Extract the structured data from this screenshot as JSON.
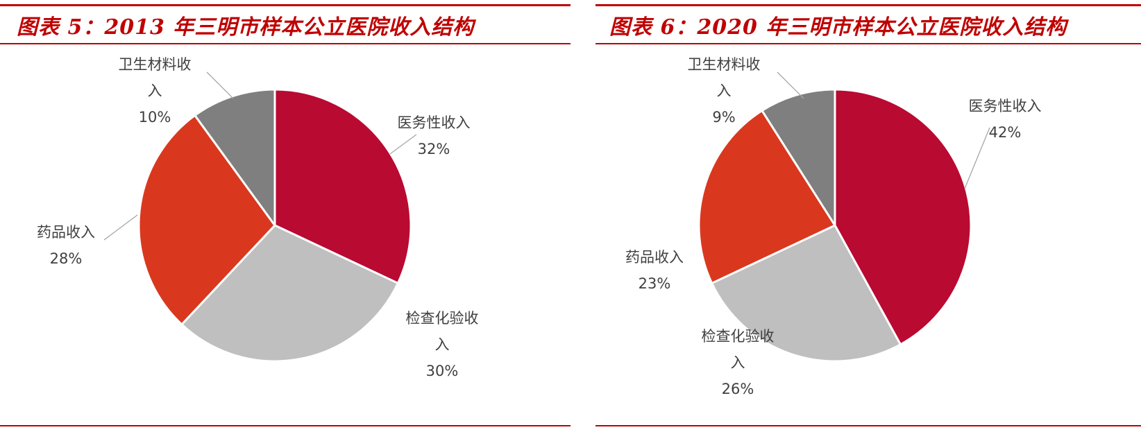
{
  "chart_data": [
    {
      "type": "pie",
      "title": "图表 5：2013 年三明市样本公立医院收入结构",
      "slices": [
        {
          "label_lines": [
            "医务性收入"
          ],
          "value": 32,
          "value_label": "32%",
          "color": "#b90a32"
        },
        {
          "label_lines": [
            "检查化验收",
            "入"
          ],
          "value": 30,
          "value_label": "30%",
          "color": "#bfbfbf"
        },
        {
          "label_lines": [
            "药品收入"
          ],
          "value": 28,
          "value_label": "28%",
          "color": "#d9381e"
        },
        {
          "label_lines": [
            "卫生材料收",
            "入"
          ],
          "value": 10,
          "value_label": "10%",
          "color": "#7f7f7f"
        }
      ]
    },
    {
      "type": "pie",
      "title": "图表 6：2020 年三明市样本公立医院收入结构",
      "slices": [
        {
          "label_lines": [
            "医务性收入"
          ],
          "value": 42,
          "value_label": "42%",
          "color": "#b90a32"
        },
        {
          "label_lines": [
            "检查化验收",
            "入"
          ],
          "value": 26,
          "value_label": "26%",
          "color": "#bfbfbf"
        },
        {
          "label_lines": [
            "药品收入"
          ],
          "value": 23,
          "value_label": "23%",
          "color": "#d9381e"
        },
        {
          "label_lines": [
            "卫生材料收",
            "入"
          ],
          "value": 9,
          "value_label": "9%",
          "color": "#7f7f7f"
        }
      ]
    }
  ]
}
